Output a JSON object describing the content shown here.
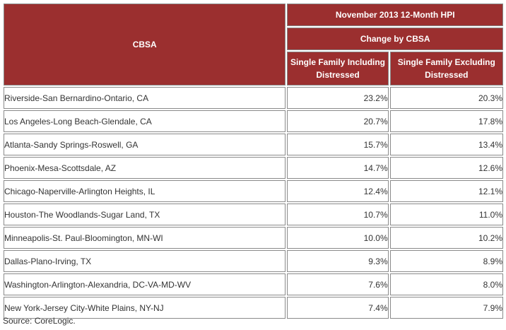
{
  "table": {
    "header": {
      "cbsa": "CBSA",
      "group_title": "November 2013 12-Month HPI",
      "group_subtitle": "Change by CBSA",
      "col_including": "Single Family Including Distressed",
      "col_excluding": "Single Family Excluding Distressed"
    },
    "rows": [
      {
        "cbsa": "Riverside-San Bernardino-Ontario, CA",
        "including": "23.2%",
        "excluding": "20.3%"
      },
      {
        "cbsa": "Los Angeles-Long Beach-Glendale, CA",
        "including": "20.7%",
        "excluding": "17.8%"
      },
      {
        "cbsa": "Atlanta-Sandy Springs-Roswell, GA",
        "including": "15.7%",
        "excluding": "13.4%"
      },
      {
        "cbsa": "Phoenix-Mesa-Scottsdale, AZ",
        "including": "14.7%",
        "excluding": "12.6%"
      },
      {
        "cbsa": "Chicago-Naperville-Arlington Heights, IL",
        "including": "12.4%",
        "excluding": "12.1%"
      },
      {
        "cbsa": "Houston-The Woodlands-Sugar Land, TX",
        "including": "10.7%",
        "excluding": "11.0%"
      },
      {
        "cbsa": "Minneapolis-St. Paul-Bloomington, MN-WI",
        "including": "10.0%",
        "excluding": "10.2%"
      },
      {
        "cbsa": "Dallas-Plano-Irving, TX",
        "including": "9.3%",
        "excluding": "8.9%"
      },
      {
        "cbsa": "Washington-Arlington-Alexandria, DC-VA-MD-WV",
        "including": "7.6%",
        "excluding": "8.0%"
      },
      {
        "cbsa": "New York-Jersey City-White Plains, NY-NJ",
        "including": "7.4%",
        "excluding": "7.9%"
      }
    ]
  },
  "source": "Source: CoreLogic.",
  "colors": {
    "header_bg": "#9b2f2f",
    "header_text": "#ffffff",
    "border": "#8a8a8a",
    "body_text": "#333333"
  }
}
